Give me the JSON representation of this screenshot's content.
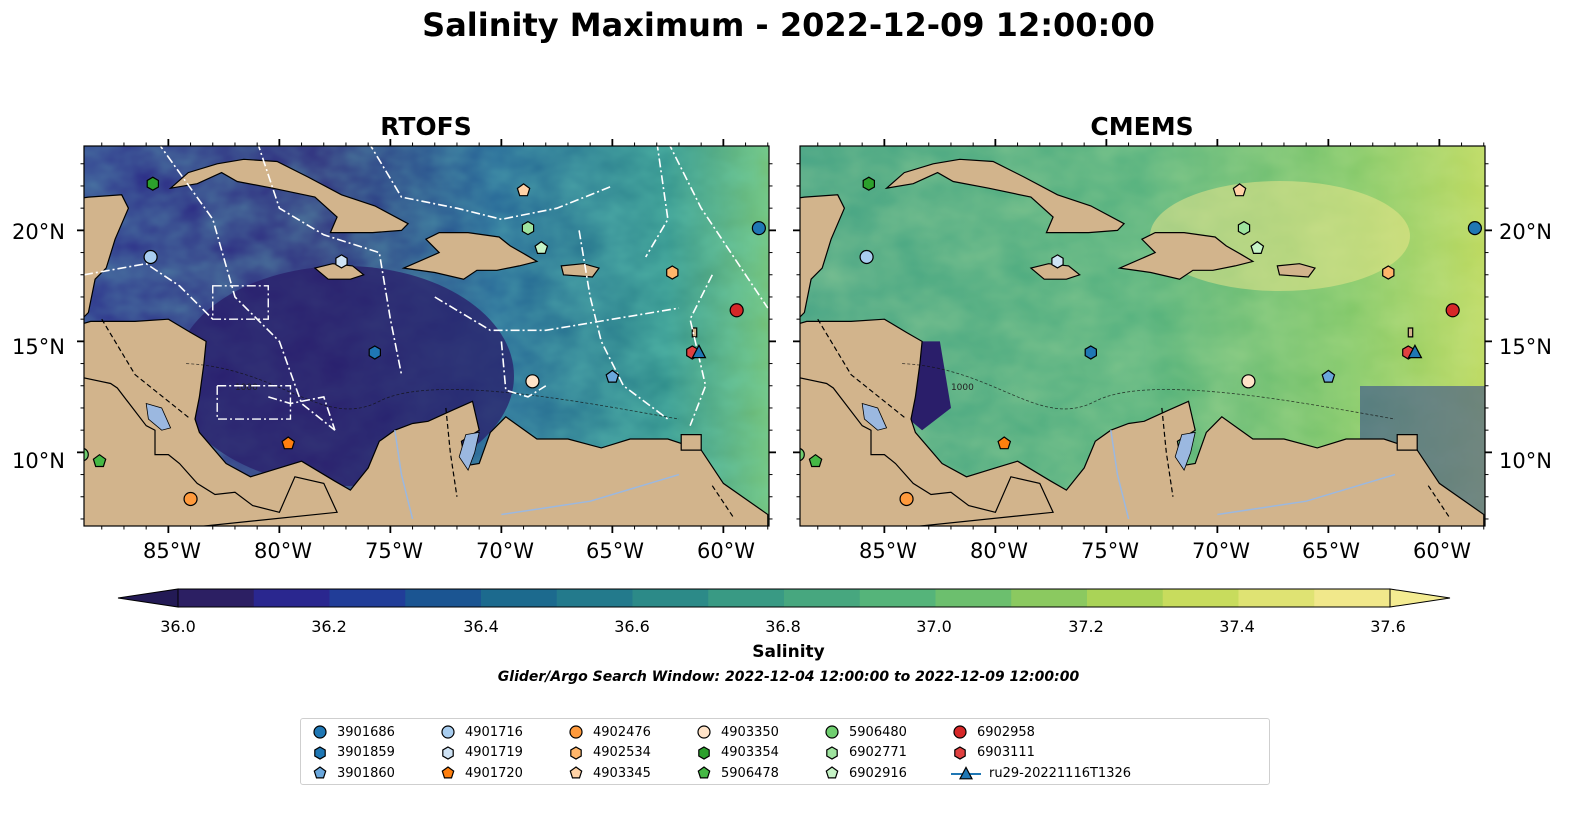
{
  "title": "Salinity Maximum - 2022-12-09 12:00:00",
  "panels": [
    {
      "title": "RTOFS"
    },
    {
      "title": "CMEMS"
    }
  ],
  "lat_ticks": [
    "20°N",
    "15°N",
    "10°N"
  ],
  "lon_ticks": [
    "85°W",
    "80°W",
    "75°W",
    "70°W",
    "65°W",
    "60°W"
  ],
  "colorbar": {
    "ticks": [
      "36.0",
      "36.2",
      "36.4",
      "36.6",
      "36.8",
      "37.0",
      "37.2",
      "37.4",
      "37.6"
    ],
    "label": "Salinity",
    "colors": [
      "#2c1f63",
      "#2a278f",
      "#213d98",
      "#1b5592",
      "#1c6a8e",
      "#237a8c",
      "#2c8a88",
      "#399a84",
      "#47a77f",
      "#55b47a",
      "#6cbf6e",
      "#8bc960",
      "#aad357",
      "#c8dc5d",
      "#dfe373",
      "#f1e88b"
    ]
  },
  "subtitle": "Glider/Argo Search Window: 2022-12-04 12:00:00 to 2022-12-09 12:00:00",
  "contour_label": "1000",
  "colors": {
    "land": "#d2b48c",
    "ocean_low": "#2a1e6a",
    "ocean_mid": "#3a9a83",
    "ocean_high": "#f1e88b",
    "lake": "#9bb8e0"
  },
  "legend": [
    {
      "label": "3901686",
      "marker": "circle",
      "color": "#1f77b4"
    },
    {
      "label": "3901859",
      "marker": "hexagon",
      "color": "#1f77b4"
    },
    {
      "label": "3901860",
      "marker": "pentagon",
      "color": "#6aa7dc"
    },
    {
      "label": "4901716",
      "marker": "circle",
      "color": "#a8cdef"
    },
    {
      "label": "4901719",
      "marker": "hexagon",
      "color": "#cfe3f5"
    },
    {
      "label": "4901720",
      "marker": "pentagon",
      "color": "#ff7f0e"
    },
    {
      "label": "4902476",
      "marker": "circle",
      "color": "#ff9a3c"
    },
    {
      "label": "4902534",
      "marker": "hexagon",
      "color": "#ffb66b"
    },
    {
      "label": "4903345",
      "marker": "pentagon",
      "color": "#ffd2a6"
    },
    {
      "label": "4903350",
      "marker": "circle",
      "color": "#ffe3c8"
    },
    {
      "label": "4903354",
      "marker": "hexagon",
      "color": "#2ca02c"
    },
    {
      "label": "5906478",
      "marker": "pentagon",
      "color": "#45b845"
    },
    {
      "label": "5906480",
      "marker": "circle",
      "color": "#6fce6f"
    },
    {
      "label": "6902771",
      "marker": "hexagon",
      "color": "#9ee39e"
    },
    {
      "label": "6902916",
      "marker": "pentagon",
      "color": "#c6f3c6"
    },
    {
      "label": "6902958",
      "marker": "circle",
      "color": "#d62728"
    },
    {
      "label": "6903111",
      "marker": "hexagon",
      "color": "#e04040"
    },
    {
      "label": "ru29-20221116T1326",
      "marker": "triangle-line",
      "color": "#1f77b4"
    }
  ],
  "floats": [
    {
      "id": "3901686",
      "lon": -58.4,
      "lat": 20.1
    },
    {
      "id": "3901859",
      "lon": -75.7,
      "lat": 14.5
    },
    {
      "id": "3901860",
      "lon": -65.0,
      "lat": 13.4
    },
    {
      "id": "4901716",
      "lon": -85.8,
      "lat": 18.8
    },
    {
      "id": "4901719",
      "lon": -77.2,
      "lat": 18.6
    },
    {
      "id": "4901720",
      "lon": -79.6,
      "lat": 10.4
    },
    {
      "id": "4902476",
      "lon": -84.0,
      "lat": 7.9
    },
    {
      "id": "4902534",
      "lon": -62.3,
      "lat": 18.1
    },
    {
      "id": "4903345",
      "lon": -69.0,
      "lat": 21.8
    },
    {
      "id": "4903350",
      "lon": -68.6,
      "lat": 13.2
    },
    {
      "id": "4903354",
      "lon": -85.7,
      "lat": 22.1
    },
    {
      "id": "5906478",
      "lon": -88.1,
      "lat": 9.6
    },
    {
      "id": "5906480",
      "lon": -88.9,
      "lat": 9.9
    },
    {
      "id": "6902771",
      "lon": -68.8,
      "lat": 20.1
    },
    {
      "id": "6902916",
      "lon": -68.2,
      "lat": 19.2
    },
    {
      "id": "6902958",
      "lon": -59.4,
      "lat": 16.4
    },
    {
      "id": "6903111",
      "lon": -61.4,
      "lat": 14.5
    },
    {
      "id": "ru29-20221116T1326",
      "lon": -61.1,
      "lat": 14.5
    }
  ]
}
